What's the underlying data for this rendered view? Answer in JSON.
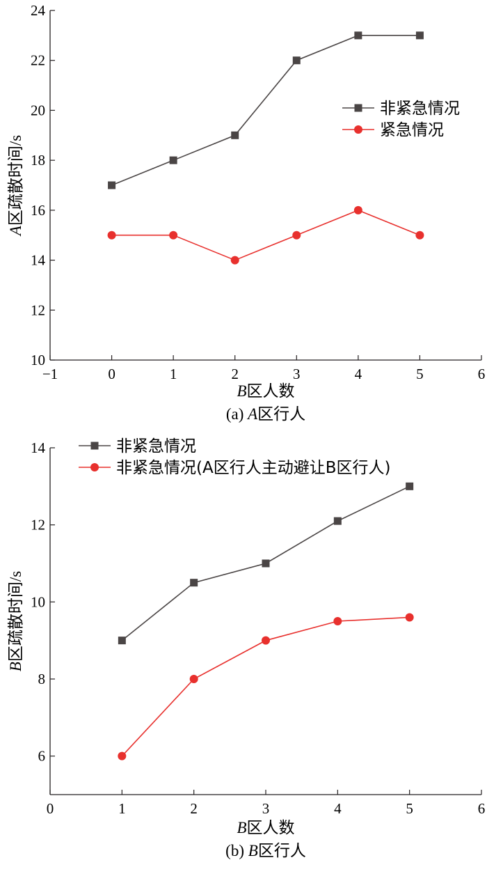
{
  "chart_data": [
    {
      "type": "line",
      "caption": "(a) A区行人",
      "caption_prefix": "(a) ",
      "caption_italic": "A",
      "caption_rest": "区行人",
      "xlabel": "B区人数",
      "xlabel_italic": "B",
      "xlabel_rest": "区人数",
      "ylabel": "A区疏散时间/s",
      "ylabel_italic": "A",
      "ylabel_rest": "区疏散时间/s",
      "xlim": [
        -1,
        6
      ],
      "ylim": [
        10,
        24
      ],
      "xticks": [
        -1,
        0,
        1,
        2,
        3,
        4,
        5,
        6
      ],
      "xtick_labels": [
        "−1",
        "0",
        "1",
        "2",
        "3",
        "4",
        "5",
        "6"
      ],
      "yticks": [
        10,
        12,
        14,
        16,
        18,
        20,
        22,
        24
      ],
      "ytick_labels": [
        "10",
        "12",
        "14",
        "16",
        "18",
        "20",
        "22",
        "24"
      ],
      "legend_position": "upper-right",
      "series": [
        {
          "name": "非紧急情况",
          "marker": "square",
          "color": "#4a4545",
          "x": [
            0,
            1,
            2,
            3,
            4,
            5
          ],
          "y": [
            17,
            18,
            19,
            22,
            23,
            23
          ]
        },
        {
          "name": "紧急情况",
          "marker": "circle",
          "color": "#e8302d",
          "x": [
            0,
            1,
            2,
            3,
            4,
            5
          ],
          "y": [
            15,
            15,
            14,
            15,
            16,
            15
          ]
        }
      ]
    },
    {
      "type": "line",
      "caption": "(b) B区行人",
      "caption_prefix": "(b) ",
      "caption_italic": "B",
      "caption_rest": "区行人",
      "xlabel": "B区人数",
      "xlabel_italic": "B",
      "xlabel_rest": "区人数",
      "ylabel": "B区疏散时间/s",
      "ylabel_italic": "B",
      "ylabel_rest": "区疏散时间/s",
      "xlim": [
        0,
        6
      ],
      "ylim": [
        5,
        14
      ],
      "xticks": [
        0,
        1,
        2,
        3,
        4,
        5,
        6
      ],
      "xtick_labels": [
        "0",
        "1",
        "2",
        "3",
        "4",
        "5",
        "6"
      ],
      "yticks": [
        6,
        8,
        10,
        12,
        14
      ],
      "ytick_labels": [
        "6",
        "8",
        "10",
        "12",
        "14"
      ],
      "legend_position": "top-left",
      "series": [
        {
          "name": "非紧急情况",
          "marker": "square",
          "color": "#4a4545",
          "x": [
            1,
            2,
            3,
            4,
            5
          ],
          "y": [
            9,
            10.5,
            11,
            12.1,
            13
          ]
        },
        {
          "name": "非紧急情况(A区行人主动避让B区行人)",
          "marker": "circle",
          "color": "#e8302d",
          "x": [
            1,
            2,
            3,
            4,
            5
          ],
          "y": [
            6,
            8,
            9,
            9.5,
            9.6
          ]
        }
      ]
    }
  ]
}
